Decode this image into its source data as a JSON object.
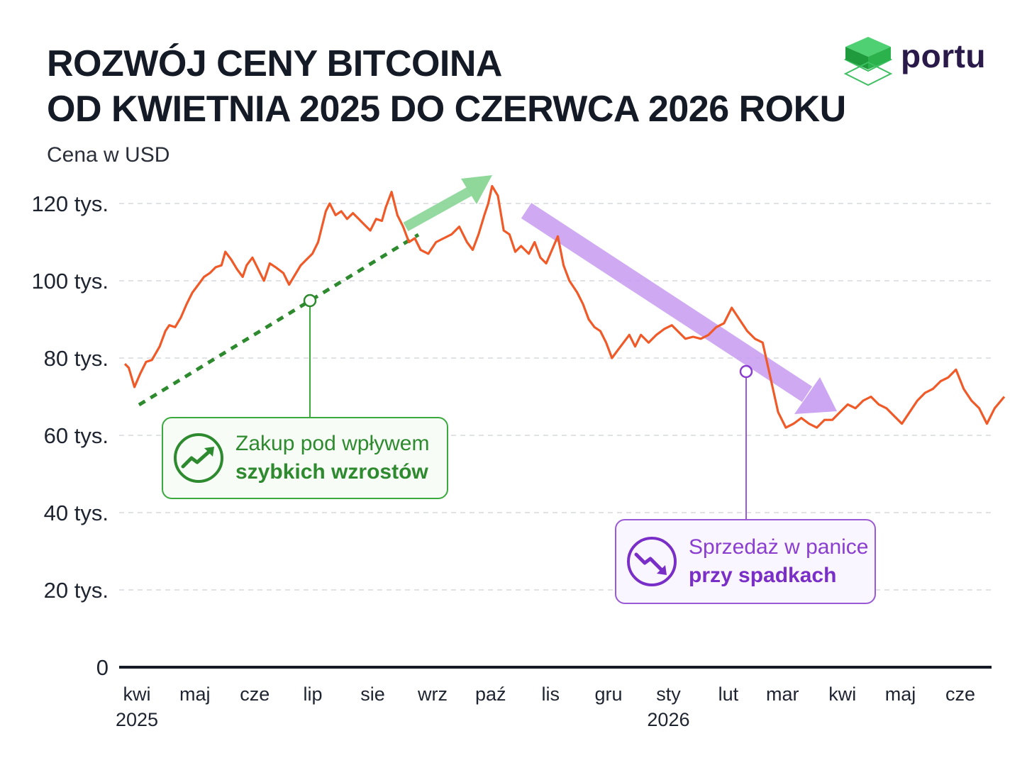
{
  "header": {
    "title_line1": "ROZWÓJ CENY BITCOINA",
    "title_line2": "OD KWIETNIA 2025 DO CZERWCA 2026 ROKU",
    "logo_text": "portu"
  },
  "colors": {
    "price_line": "#f05a28",
    "buy_green": "#2e8a2e",
    "sell_purple": "#8a3ed0",
    "rise_arrow": "#8fd89a",
    "fall_arrow": "#c79cf2",
    "title": "#141a26",
    "logo_green": "#2bb24c",
    "logo_text": "#2a1a4a"
  },
  "annotations": {
    "buy": {
      "line1": "Zakup pod wpływem",
      "line2": "szybkich wzrostów",
      "icon": "trend-up-icon"
    },
    "sell": {
      "line1": "Sprzedaż w panice",
      "line2": "przy spadkach",
      "icon": "trend-down-icon"
    }
  },
  "chart_data": {
    "type": "line",
    "title": "ROZWÓJ CENY BITCOINA OD KWIETNIA 2025 DO CZERWCA 2026 ROKU",
    "ylabel": "Cena w USD",
    "xlabel": "",
    "ylim": [
      0,
      120000
    ],
    "yticks": [
      {
        "value": 0,
        "label": "0"
      },
      {
        "value": 20000,
        "label": "20 tys."
      },
      {
        "value": 40000,
        "label": "40 tys."
      },
      {
        "value": 60000,
        "label": "60 tys."
      },
      {
        "value": 80000,
        "label": "80 tys."
      },
      {
        "value": 100000,
        "label": "100 tys."
      },
      {
        "value": 120000,
        "label": "120 tys."
      }
    ],
    "xlim": [
      "2025-04-01",
      "2026-06-30"
    ],
    "xticks": [
      {
        "date": "2025-04-01",
        "label": "kwi",
        "sublabel": "2025"
      },
      {
        "date": "2025-05-01",
        "label": "maj"
      },
      {
        "date": "2025-06-01",
        "label": "cze"
      },
      {
        "date": "2025-07-01",
        "label": "lip"
      },
      {
        "date": "2025-08-01",
        "label": "sie"
      },
      {
        "date": "2025-09-01",
        "label": "wrz"
      },
      {
        "date": "2025-10-01",
        "label": "paź"
      },
      {
        "date": "2025-11-01",
        "label": "lis"
      },
      {
        "date": "2025-12-01",
        "label": "gru"
      },
      {
        "date": "2026-01-01",
        "label": "sty",
        "sublabel": "2026"
      },
      {
        "date": "2026-02-01",
        "label": "lut"
      },
      {
        "date": "2026-03-01",
        "label": "mar"
      },
      {
        "date": "2026-04-01",
        "label": "kwi"
      },
      {
        "date": "2026-05-01",
        "label": "maj"
      },
      {
        "date": "2026-06-01",
        "label": "cze"
      }
    ],
    "grid": "horizontal-dashed",
    "series": [
      {
        "x": [
          "2025-04-01",
          "2025-04-03",
          "2025-04-06",
          "2025-04-09",
          "2025-04-12",
          "2025-04-15",
          "2025-04-19",
          "2025-04-22",
          "2025-04-24",
          "2025-04-27",
          "2025-04-30",
          "2025-05-03",
          "2025-05-06",
          "2025-05-09",
          "2025-05-12",
          "2025-05-15",
          "2025-05-18",
          "2025-05-21",
          "2025-05-23",
          "2025-05-26",
          "2025-05-29",
          "2025-06-01",
          "2025-06-03",
          "2025-06-06",
          "2025-06-09",
          "2025-06-12",
          "2025-06-15",
          "2025-06-18",
          "2025-06-22",
          "2025-06-25",
          "2025-06-28",
          "2025-07-01",
          "2025-07-04",
          "2025-07-07",
          "2025-07-10",
          "2025-07-14",
          "2025-07-16",
          "2025-07-19",
          "2025-07-22",
          "2025-07-25",
          "2025-07-28",
          "2025-07-31",
          "2025-08-03",
          "2025-08-06",
          "2025-08-09",
          "2025-08-12",
          "2025-08-14",
          "2025-08-17",
          "2025-08-20",
          "2025-08-23",
          "2025-08-26",
          "2025-08-29",
          "2025-09-01",
          "2025-09-05",
          "2025-09-09",
          "2025-09-13",
          "2025-09-17",
          "2025-09-21",
          "2025-09-25",
          "2025-09-28",
          "2025-10-01",
          "2025-10-04",
          "2025-10-06",
          "2025-10-08",
          "2025-10-11",
          "2025-10-14",
          "2025-10-17",
          "2025-10-20",
          "2025-10-23",
          "2025-10-27",
          "2025-10-30",
          "2025-11-02",
          "2025-11-05",
          "2025-11-08",
          "2025-11-11",
          "2025-11-14",
          "2025-11-17",
          "2025-11-21",
          "2025-11-24",
          "2025-11-27",
          "2025-11-30",
          "2025-12-03",
          "2025-12-06",
          "2025-12-09",
          "2025-12-12",
          "2025-12-15",
          "2025-12-18",
          "2025-12-21",
          "2025-12-24",
          "2025-12-28",
          "2026-01-01",
          "2026-01-05",
          "2026-01-09",
          "2026-01-13",
          "2026-01-16",
          "2026-01-20",
          "2026-01-24",
          "2026-01-28",
          "2026-02-01",
          "2026-02-05",
          "2026-02-09",
          "2026-02-13",
          "2026-02-17",
          "2026-02-21",
          "2026-02-25",
          "2026-03-01",
          "2026-03-05",
          "2026-03-09",
          "2026-03-13",
          "2026-03-17",
          "2026-03-21",
          "2026-03-25",
          "2026-03-29",
          "2026-04-02",
          "2026-04-06",
          "2026-04-10",
          "2026-04-14",
          "2026-04-18",
          "2026-04-22",
          "2026-04-26",
          "2026-04-30",
          "2026-05-04",
          "2026-05-08",
          "2026-05-12",
          "2026-05-16",
          "2026-05-20",
          "2026-05-24",
          "2026-05-28",
          "2026-06-01",
          "2026-06-05",
          "2026-06-09",
          "2026-06-13",
          "2026-06-17",
          "2026-06-21",
          "2026-06-25",
          "2026-06-30"
        ],
        "values": [
          78500,
          77500,
          72500,
          76000,
          79000,
          79500,
          83000,
          87000,
          88500,
          88000,
          90500,
          94000,
          97000,
          99000,
          101000,
          102000,
          103500,
          104000,
          107500,
          105500,
          103000,
          101000,
          104000,
          106000,
          103000,
          100000,
          104500,
          103500,
          102000,
          99000,
          101500,
          104000,
          105500,
          107000,
          110000,
          118000,
          120000,
          117000,
          118000,
          116000,
          117500,
          116000,
          114500,
          113000,
          116000,
          115500,
          119000,
          123000,
          117000,
          114000,
          110000,
          111000,
          108000,
          107000,
          110000,
          111000,
          112000,
          114000,
          110000,
          108000,
          112000,
          117000,
          120000,
          124500,
          122000,
          113000,
          112000,
          107500,
          109000,
          107000,
          110000,
          106000,
          104500,
          108000,
          111500,
          104000,
          100000,
          97000,
          94000,
          90000,
          88000,
          87000,
          84000,
          80000,
          82000,
          84000,
          86000,
          83000,
          86000,
          84000,
          86000,
          87500,
          88500,
          86500,
          85000,
          85500,
          85000,
          86000,
          88000,
          89000,
          93000,
          90000,
          87000,
          85000,
          84000,
          75000,
          66000,
          62000,
          63000,
          64500,
          63000,
          62000,
          64000,
          64000,
          66000,
          68000,
          67000,
          69000,
          70000,
          68000,
          67000,
          65000,
          63000,
          66000,
          69000,
          71000,
          72000,
          74000,
          75000,
          77000,
          72000,
          69000,
          67000,
          63000,
          67000,
          70000
        ]
      }
    ],
    "annotations": [
      {
        "text": "Zakup pod wpływem szybkich wzrostów",
        "date": "2025-07-10",
        "value": 94000
      },
      {
        "text": "Sprzedaż w panice przy spadkach",
        "date": "2026-02-13",
        "value": 77000
      }
    ]
  }
}
